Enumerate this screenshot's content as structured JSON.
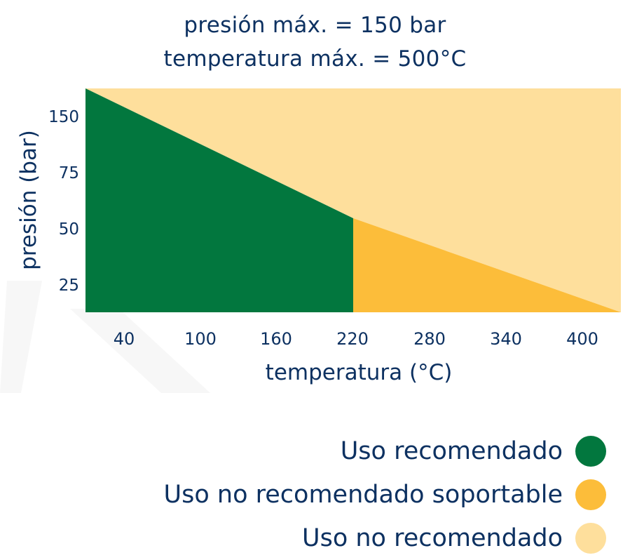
{
  "chart_data": {
    "type": "area",
    "title": [
      "presión máx. = 150 bar",
      "temperatura máx. = 500°C"
    ],
    "xlabel": "temperatura (°C)",
    "ylabel": "presión (bar)",
    "x_ticks": [
      "40",
      "100",
      "160",
      "220",
      "280",
      "340",
      "400"
    ],
    "y_ticks": [
      "150",
      "75",
      "50",
      "25"
    ],
    "regions": [
      {
        "name": "Uso recomendado",
        "color": "#02773e",
        "points": [
          [
            0,
            0
          ],
          [
            0,
            150
          ],
          [
            220,
            63
          ],
          [
            220,
            0
          ]
        ]
      },
      {
        "name": "Uso no recomendado soportable",
        "color": "#fcbd3a",
        "points": [
          [
            220,
            0
          ],
          [
            220,
            63
          ],
          [
            440,
            0
          ]
        ]
      },
      {
        "name": "Uso no recomendado",
        "color": "#fedf9c",
        "points": [
          [
            0,
            150
          ],
          [
            440,
            150
          ],
          [
            440,
            0
          ],
          [
            220,
            63
          ]
        ]
      }
    ],
    "grid": false,
    "legend_position": "bottom-right"
  },
  "legend": {
    "items": [
      {
        "label": "Uso recomendado",
        "color": "#02773e"
      },
      {
        "label": "Uso no recomendado soportable",
        "color": "#fcbd3a"
      },
      {
        "label": "Uso no recomendado",
        "color": "#fedf9c"
      }
    ]
  }
}
